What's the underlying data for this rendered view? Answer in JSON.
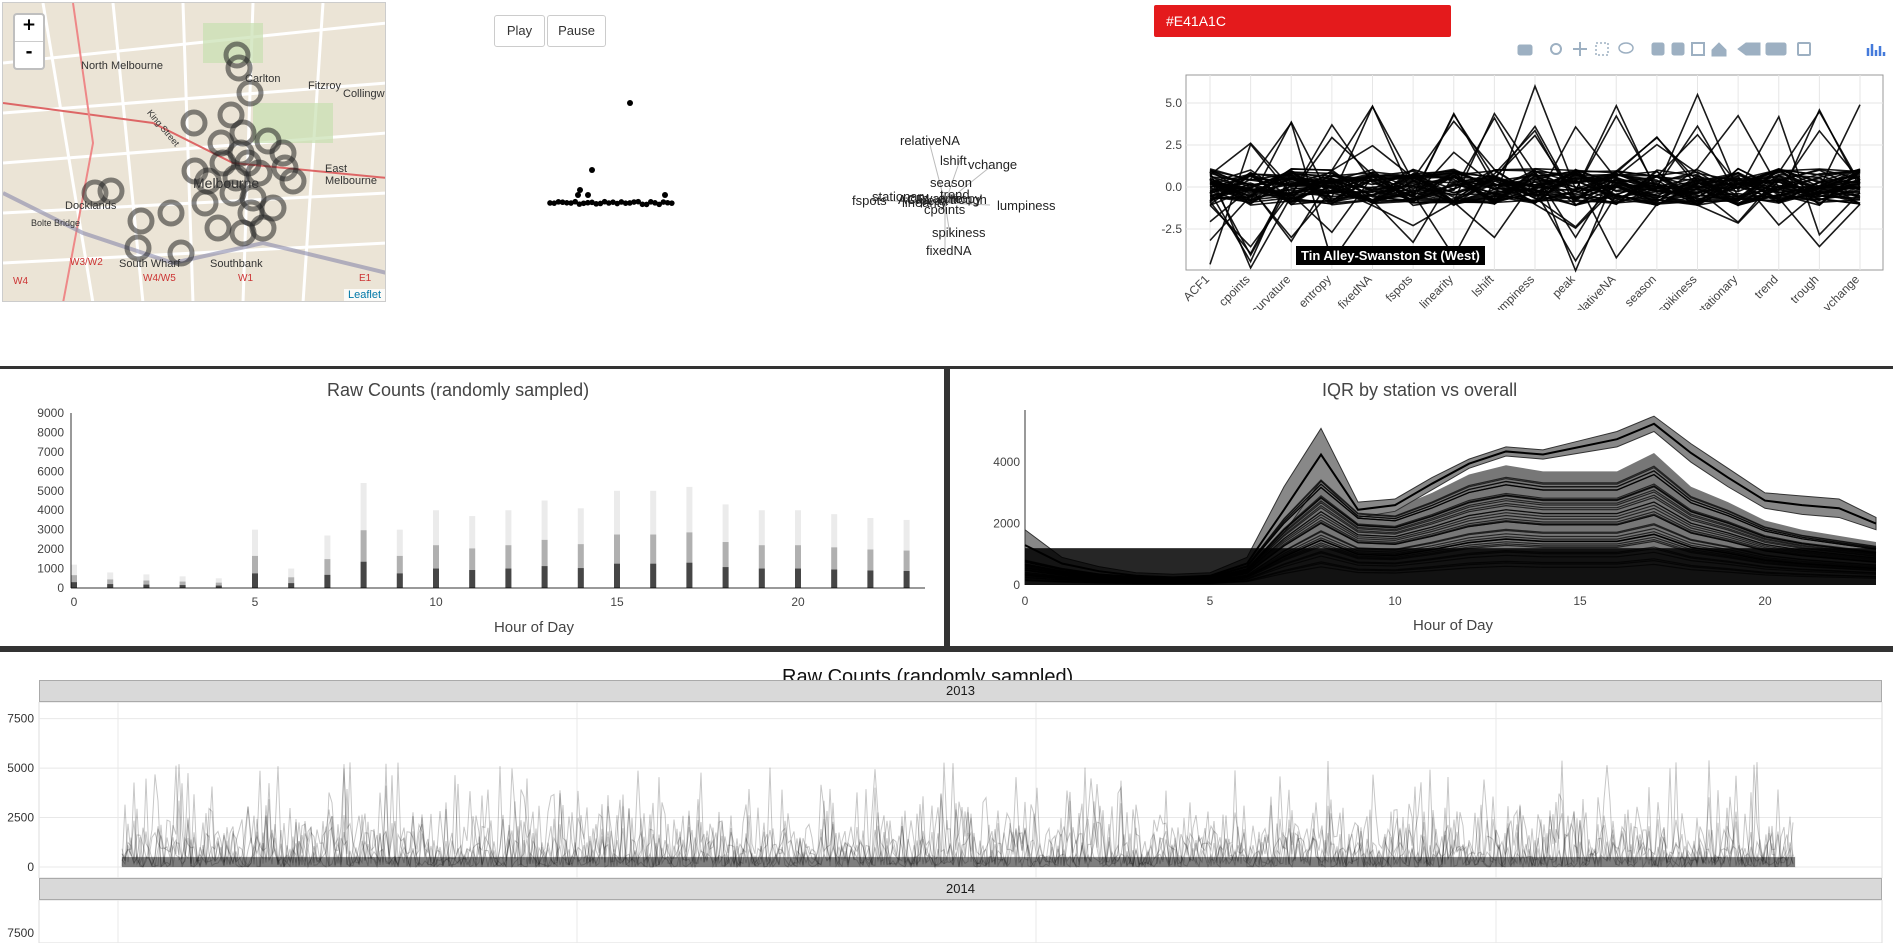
{
  "map": {
    "zoom_in": "+",
    "zoom_out": "-",
    "attribution": "Leaflet",
    "labels": [
      "North Melbourne",
      "Carlton",
      "Fitzroy",
      "Collingwood",
      "Melbourne",
      "East Melbourne",
      "Docklands",
      "South Wharf",
      "Southbank",
      "Bolte Bridge",
      "W3/W2",
      "W4",
      "W4/W5",
      "W1",
      "E1",
      "King Street"
    ]
  },
  "animation": {
    "play_label": "Play",
    "pause_label": "Pause"
  },
  "color": {
    "swatch_label": "#E41A1C",
    "swatch_hex": "#E41A1C"
  },
  "toolbar": {
    "icons": [
      "camera-icon",
      "zoom-icon",
      "pan-icon",
      "box-select-icon",
      "lasso-icon",
      "zoom-in-icon",
      "zoom-out-icon",
      "autoscale-icon",
      "reset-axes-icon",
      "spike-lines-icon",
      "compare-hover-icon",
      "closest-hover-icon",
      "plotly-logo-icon"
    ]
  },
  "feature_labels": {
    "words": [
      "relativeNA",
      "lshift",
      "vchange",
      "season",
      "trend",
      "stationary",
      "linearity",
      "entropy",
      "fspots",
      "curvature",
      "peak",
      "cpoints",
      "lumpiness",
      "spikiness",
      "fixedNA",
      "ACF1",
      "trough"
    ]
  },
  "parcoords": {
    "axes": [
      "ACF1",
      "cpoints",
      "curvature",
      "entropy",
      "fixedNA",
      "fspots",
      "linearity",
      "lshift",
      "lumpiness",
      "peak",
      "relativeNA",
      "season",
      "spikiness",
      "stationary",
      "trend",
      "trough",
      "vchange"
    ],
    "y_ticks": [
      "5.0",
      "2.5",
      "0.0",
      "-2.5"
    ],
    "tooltip": "Tin Alley-Swanston St (West)"
  },
  "chart_data": [
    {
      "type": "scatter",
      "title": "Raw Counts (randomly sampled)",
      "xlabel": "Hour of Day",
      "ylabel": "",
      "x_ticks": [
        "0",
        "5",
        "10",
        "15",
        "20"
      ],
      "y_ticks": [
        "0",
        "1000",
        "2000",
        "3000",
        "4000",
        "5000",
        "6000",
        "7000",
        "8000",
        "9000"
      ],
      "xlim": [
        -0.5,
        23.5
      ],
      "ylim": [
        0,
        9000
      ],
      "x": [
        0,
        1,
        2,
        3,
        4,
        5,
        6,
        7,
        8,
        9,
        10,
        11,
        12,
        13,
        14,
        15,
        16,
        17,
        18,
        19,
        20,
        21,
        22,
        23
      ],
      "max_values": [
        1200,
        800,
        700,
        600,
        500,
        3000,
        1000,
        2700,
        5400,
        3000,
        4000,
        3700,
        4000,
        4500,
        4100,
        5000,
        5000,
        5200,
        4300,
        4000,
        4000,
        3800,
        3600,
        3500
      ]
    },
    {
      "type": "area",
      "title": "IQR by station vs overall",
      "xlabel": "Hour of Day",
      "ylabel": "",
      "x_ticks": [
        "0",
        "5",
        "10",
        "15",
        "20"
      ],
      "y_ticks": [
        "0",
        "2000",
        "4000"
      ],
      "xlim": [
        0,
        23
      ],
      "ylim": [
        0,
        5700
      ],
      "x": [
        0,
        1,
        2,
        3,
        4,
        5,
        6,
        7,
        8,
        9,
        10,
        11,
        12,
        13,
        14,
        15,
        16,
        17,
        18,
        19,
        20,
        21,
        22,
        23
      ],
      "overall_upper": [
        1800,
        900,
        600,
        400,
        350,
        400,
        900,
        3200,
        5100,
        2700,
        2800,
        3500,
        4100,
        4500,
        4400,
        4700,
        5000,
        5500,
        4600,
        3800,
        3000,
        2900,
        2800,
        2200
      ],
      "overall_lower": [
        800,
        500,
        300,
        200,
        150,
        200,
        500,
        1700,
        3400,
        2200,
        2400,
        3100,
        3800,
        4200,
        4100,
        4300,
        4500,
        5000,
        4000,
        3200,
        2500,
        2300,
        2200,
        1800
      ],
      "station_max": [
        900,
        600,
        400,
        300,
        250,
        300,
        700,
        2400,
        3800,
        2600,
        2500,
        3000,
        3600,
        3900,
        3700,
        3700,
        3700,
        4300,
        3200,
        2700,
        2100,
        1800,
        1600,
        1400
      ]
    },
    {
      "type": "line",
      "title": "Raw Counts (randomly sampled)",
      "facets": [
        "2013",
        "2014"
      ],
      "y_ticks": [
        "0",
        "2500",
        "5000",
        "7500"
      ],
      "ylim": [
        0,
        9000
      ]
    }
  ]
}
